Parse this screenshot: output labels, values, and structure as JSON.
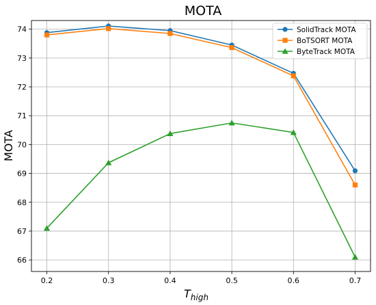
{
  "chart_data": {
    "type": "line",
    "title": "MOTA",
    "xlabel_main": "T",
    "xlabel_sub": "high",
    "ylabel": "MOTA",
    "x": [
      0.2,
      0.3,
      0.4,
      0.5,
      0.6,
      0.7
    ],
    "x_tick_labels": [
      "0.2",
      "0.3",
      "0.4",
      "0.5",
      "0.6",
      "0.7"
    ],
    "y_ticks": [
      66,
      67,
      68,
      69,
      70,
      71,
      72,
      73,
      74
    ],
    "xlim": [
      0.175,
      0.725
    ],
    "ylim": [
      65.6,
      74.3
    ],
    "grid": true,
    "legend_position": "top-right",
    "series": [
      {
        "name": "SolidTrack MOTA",
        "color": "#1f77b4",
        "marker": "circle",
        "values": [
          73.88,
          74.11,
          73.95,
          73.45,
          72.47,
          69.09
        ]
      },
      {
        "name": "BoTSORT MOTA",
        "color": "#ff7f0e",
        "marker": "square",
        "values": [
          73.8,
          74.02,
          73.85,
          73.36,
          72.38,
          68.6
        ]
      },
      {
        "name": "ByteTrack MOTA",
        "color": "#2ca02c",
        "marker": "triangle",
        "values": [
          67.1,
          69.37,
          70.38,
          70.75,
          70.42,
          66.1
        ]
      }
    ]
  }
}
